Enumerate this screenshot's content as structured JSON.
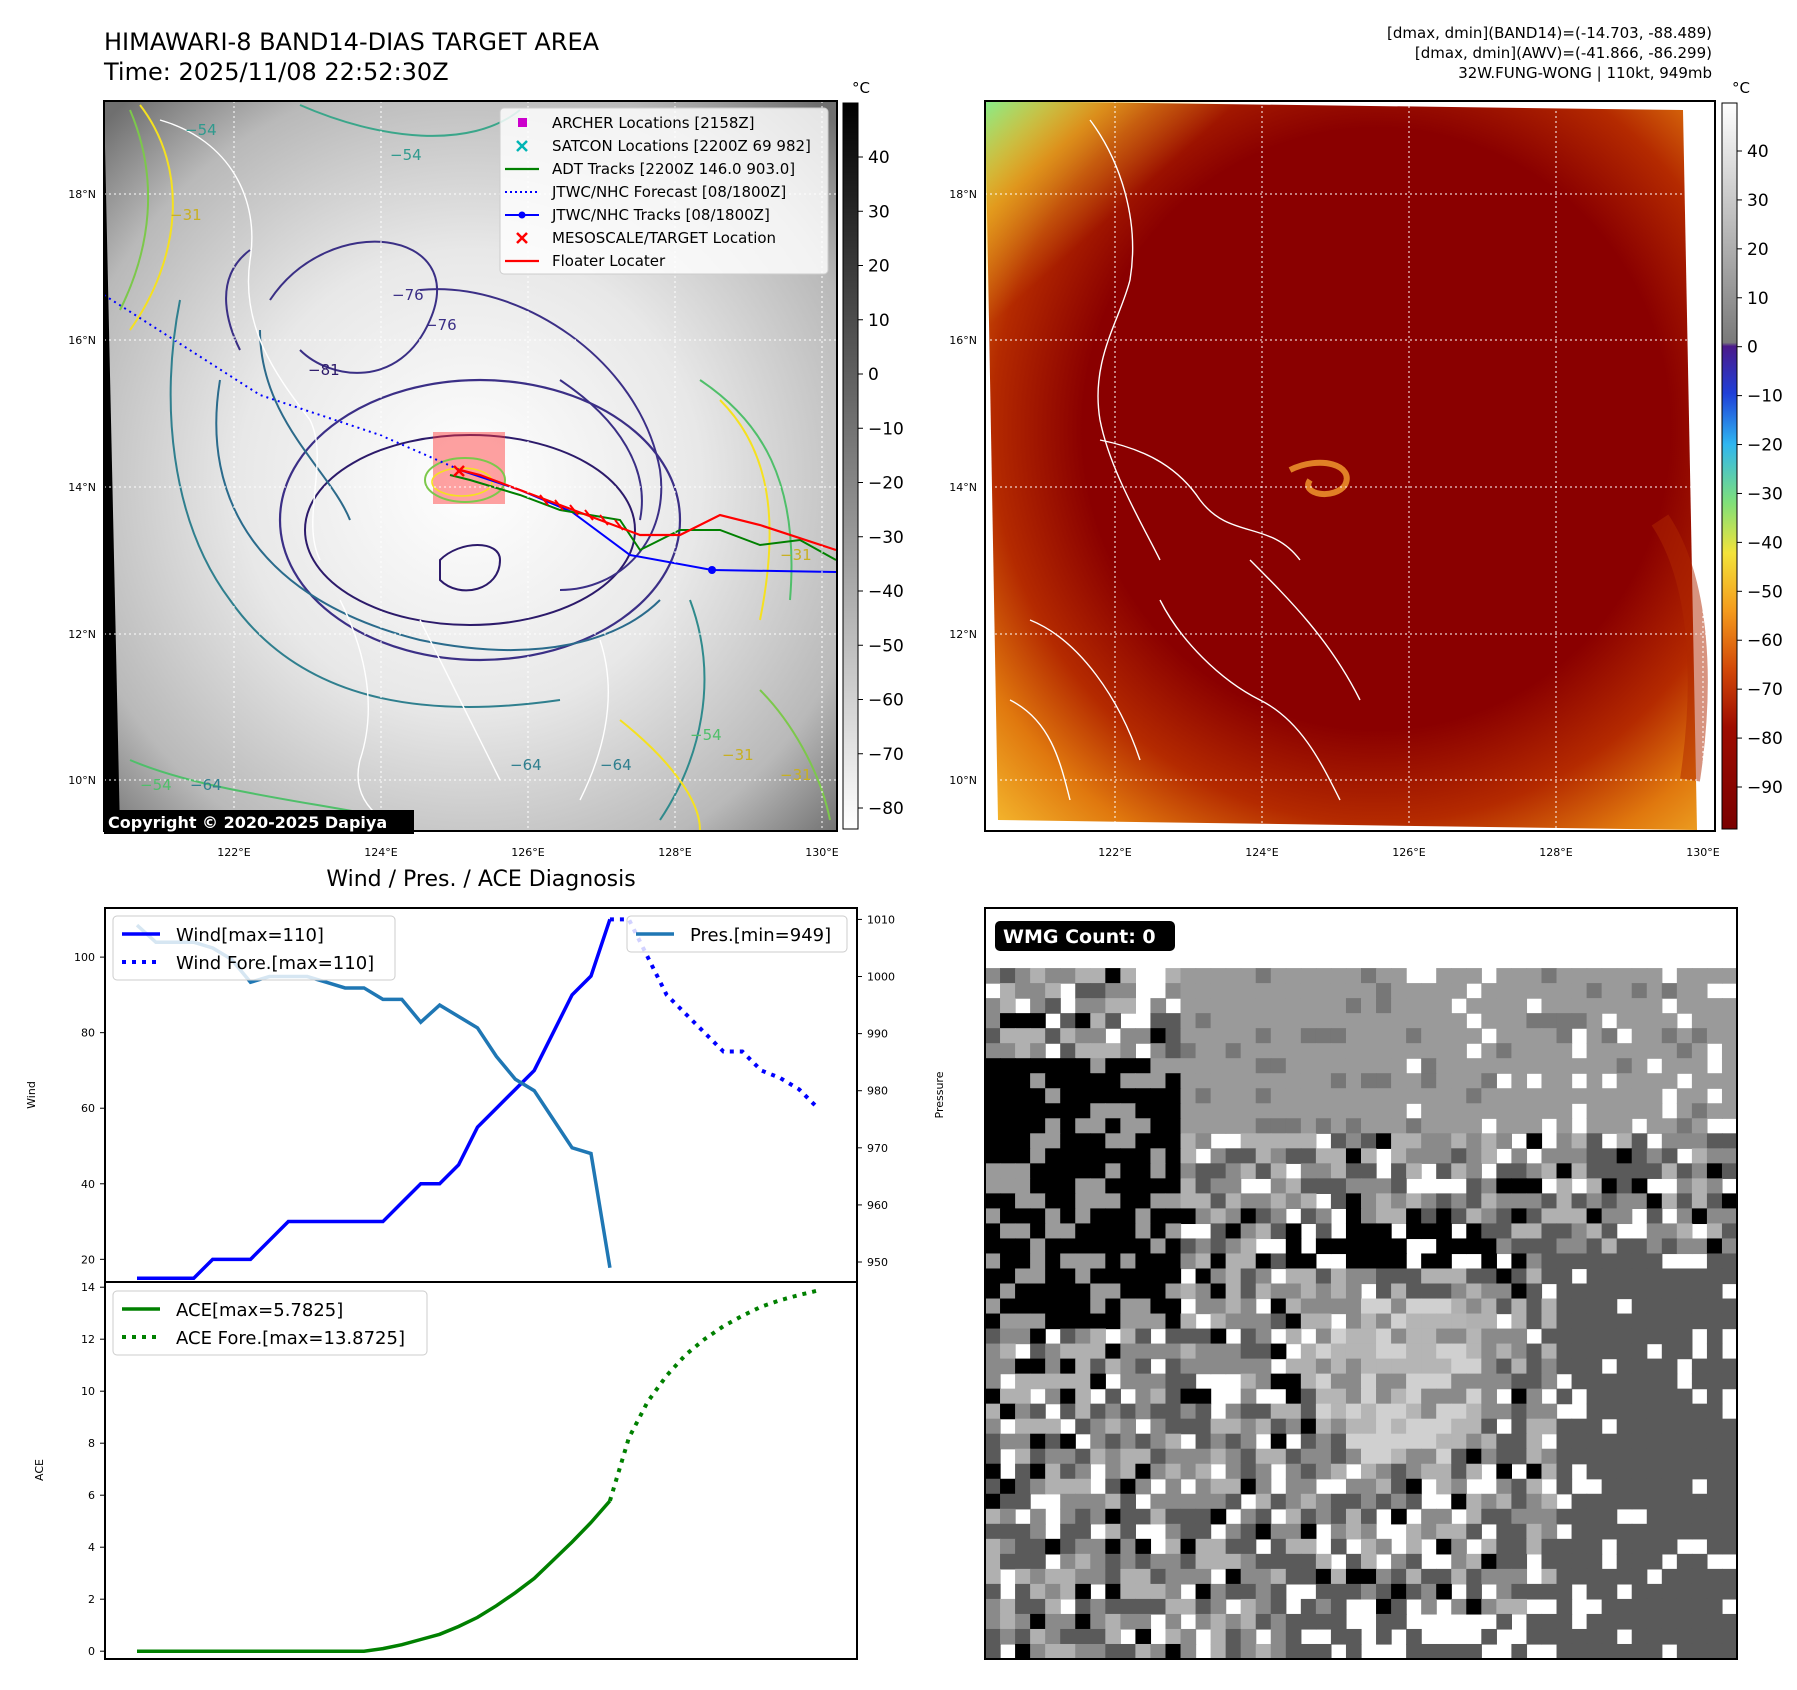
{
  "panel_tl": {
    "title": "HIMAWARI-8 BAND14-DIAS TARGET AREA",
    "subtitle": "Time: 2025/11/08 22:52:30Z",
    "copyright": "Copyright © 2020-2025 Dapiya",
    "unit": "°C",
    "colorbar_ticks": [
      "40",
      "30",
      "20",
      "10",
      "0",
      "−10",
      "−20",
      "−30",
      "−40",
      "−50",
      "−60",
      "−70",
      "−80"
    ],
    "contour_labels": [
      "−76",
      "−76",
      "−81",
      "−54",
      "−54",
      "−64",
      "−64",
      "−54",
      "−31",
      "−31",
      "−64",
      "−54",
      "−31",
      "−31"
    ],
    "legend": [
      {
        "label": "ARCHER Locations [2158Z]",
        "color": "#cc00cc",
        "marker": "square"
      },
      {
        "label": "SATCON Locations [2200Z 69 982]",
        "color": "#00b5b5",
        "marker": "x"
      },
      {
        "label": "ADT Tracks [2200Z 146.0 903.0]",
        "color": "#008000",
        "marker": "line"
      },
      {
        "label": "JTWC/NHC Forecast [08/1800Z]",
        "color": "#0000ff",
        "marker": "dotted"
      },
      {
        "label": "JTWC/NHC Tracks [08/1800Z]",
        "color": "#0000ff",
        "marker": "line-dot"
      },
      {
        "label": "MESOSCALE/TARGET Location",
        "color": "#ff0000",
        "marker": "x"
      },
      {
        "label": "Floater Locater",
        "color": "#ff0000",
        "marker": "line"
      }
    ]
  },
  "panel_tr": {
    "info_line1": "[dmax, dmin](BAND14)=(-14.703, -88.489)",
    "info_line2": "[dmax, dmin](AWV)=(-41.866, -86.299)",
    "info_line3": "32W.FUNG-WONG | 110kt, 949mb",
    "unit": "°C",
    "colorbar_ticks": [
      "40",
      "30",
      "20",
      "10",
      "0",
      "−10",
      "−20",
      "−30",
      "−40",
      "−50",
      "−60",
      "−70",
      "−80",
      "−90"
    ]
  },
  "map_axes": {
    "lat_ticks": [
      "18°N",
      "16°N",
      "14°N",
      "12°N",
      "10°N"
    ],
    "lon_ticks": [
      "122°E",
      "124°E",
      "126°E",
      "128°E",
      "130°E"
    ]
  },
  "panel_br": {
    "wmg_label": "WMG Count: 0"
  },
  "chart_data": [
    {
      "type": "line",
      "title": "Wind / Pres. / ACE Diagnosis",
      "ylabel": "Wind",
      "ylabel_right": "Pressure",
      "ylim": [
        14,
        113
      ],
      "ylim_right": [
        946.5,
        1012
      ],
      "yticks": [
        20,
        40,
        60,
        80,
        100
      ],
      "yticks_right": [
        950,
        960,
        970,
        980,
        990,
        1000,
        1010
      ],
      "x_range": [
        0,
        36
      ],
      "series": [
        {
          "name": "Wind[max=110]",
          "axis": "left",
          "style": "solid",
          "color": "#0000ff",
          "x": [
            0,
            1,
            2,
            3,
            4,
            5,
            6,
            7,
            8,
            9,
            10,
            11,
            12,
            13,
            14,
            15,
            16,
            17,
            18,
            19,
            20,
            21,
            22,
            23,
            24,
            25
          ],
          "y": [
            15,
            15,
            15,
            15,
            20,
            20,
            20,
            25,
            30,
            30,
            30,
            30,
            30,
            30,
            35,
            40,
            40,
            45,
            55,
            60,
            65,
            70,
            80,
            90,
            95,
            110
          ]
        },
        {
          "name": "Wind Fore.[max=110]",
          "axis": "left",
          "style": "dotted",
          "color": "#0000ff",
          "x": [
            25,
            26,
            27,
            28,
            29,
            30,
            31,
            32,
            33,
            34,
            35,
            36
          ],
          "y": [
            110,
            110,
            100,
            90,
            85,
            80,
            75,
            75,
            70,
            68,
            65,
            60
          ]
        },
        {
          "name": "Pres.[min=949]",
          "axis": "right",
          "style": "solid",
          "color": "#1f77b4",
          "x": [
            0,
            1,
            2,
            3,
            4,
            5,
            6,
            7,
            8,
            9,
            10,
            11,
            12,
            13,
            14,
            15,
            16,
            17,
            18,
            19,
            20,
            21,
            22,
            23,
            24,
            25
          ],
          "y": [
            1009,
            1006,
            1006,
            1006,
            1005,
            1003,
            999,
            1000,
            1000,
            1000,
            999,
            998,
            998,
            996,
            996,
            992,
            995,
            993,
            991,
            986,
            982,
            980,
            975,
            970,
            969,
            949
          ]
        }
      ]
    },
    {
      "type": "line",
      "ylabel": "ACE",
      "ylim": [
        -0.3,
        14.2
      ],
      "yticks": [
        0,
        2,
        4,
        6,
        8,
        10,
        12,
        14
      ],
      "x_range": [
        0,
        36
      ],
      "series": [
        {
          "name": "ACE[max=5.7825]",
          "style": "solid",
          "color": "#008000",
          "x": [
            0,
            2,
            4,
            6,
            8,
            10,
            12,
            13,
            14,
            15,
            16,
            17,
            18,
            19,
            20,
            21,
            22,
            23,
            24,
            25
          ],
          "y": [
            0,
            0,
            0,
            0,
            0,
            0,
            0,
            0.1,
            0.25,
            0.45,
            0.65,
            0.95,
            1.3,
            1.75,
            2.25,
            2.8,
            3.5,
            4.2,
            4.95,
            5.7825
          ]
        },
        {
          "name": "ACE Fore.[max=13.8725]",
          "style": "dotted",
          "color": "#008000",
          "x": [
            25,
            26,
            27,
            28,
            29,
            30,
            31,
            32,
            33,
            34,
            35,
            36
          ],
          "y": [
            5.7825,
            8.2,
            9.6,
            10.6,
            11.4,
            12.0,
            12.5,
            12.9,
            13.25,
            13.5,
            13.7,
            13.8725
          ]
        }
      ]
    }
  ]
}
